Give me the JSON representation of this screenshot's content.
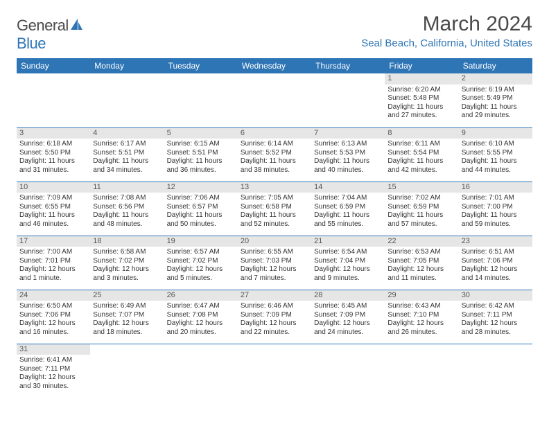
{
  "brand": {
    "name_part1": "General",
    "name_part2": "Blue",
    "sail_color": "#2e75b6"
  },
  "title": "March 2024",
  "location": "Seal Beach, California, United States",
  "colors": {
    "header_bg": "#2e75b6",
    "header_text": "#ffffff",
    "daynum_bg": "#e6e6e6",
    "row_border": "#2e75b6",
    "body_text": "#333333"
  },
  "weekdays": [
    "Sunday",
    "Monday",
    "Tuesday",
    "Wednesday",
    "Thursday",
    "Friday",
    "Saturday"
  ],
  "weeks": [
    [
      {
        "n": "",
        "sr": "",
        "ss": "",
        "dl": ""
      },
      {
        "n": "",
        "sr": "",
        "ss": "",
        "dl": ""
      },
      {
        "n": "",
        "sr": "",
        "ss": "",
        "dl": ""
      },
      {
        "n": "",
        "sr": "",
        "ss": "",
        "dl": ""
      },
      {
        "n": "",
        "sr": "",
        "ss": "",
        "dl": ""
      },
      {
        "n": "1",
        "sr": "Sunrise: 6:20 AM",
        "ss": "Sunset: 5:48 PM",
        "dl": "Daylight: 11 hours and 27 minutes."
      },
      {
        "n": "2",
        "sr": "Sunrise: 6:19 AM",
        "ss": "Sunset: 5:49 PM",
        "dl": "Daylight: 11 hours and 29 minutes."
      }
    ],
    [
      {
        "n": "3",
        "sr": "Sunrise: 6:18 AM",
        "ss": "Sunset: 5:50 PM",
        "dl": "Daylight: 11 hours and 31 minutes."
      },
      {
        "n": "4",
        "sr": "Sunrise: 6:17 AM",
        "ss": "Sunset: 5:51 PM",
        "dl": "Daylight: 11 hours and 34 minutes."
      },
      {
        "n": "5",
        "sr": "Sunrise: 6:15 AM",
        "ss": "Sunset: 5:51 PM",
        "dl": "Daylight: 11 hours and 36 minutes."
      },
      {
        "n": "6",
        "sr": "Sunrise: 6:14 AM",
        "ss": "Sunset: 5:52 PM",
        "dl": "Daylight: 11 hours and 38 minutes."
      },
      {
        "n": "7",
        "sr": "Sunrise: 6:13 AM",
        "ss": "Sunset: 5:53 PM",
        "dl": "Daylight: 11 hours and 40 minutes."
      },
      {
        "n": "8",
        "sr": "Sunrise: 6:11 AM",
        "ss": "Sunset: 5:54 PM",
        "dl": "Daylight: 11 hours and 42 minutes."
      },
      {
        "n": "9",
        "sr": "Sunrise: 6:10 AM",
        "ss": "Sunset: 5:55 PM",
        "dl": "Daylight: 11 hours and 44 minutes."
      }
    ],
    [
      {
        "n": "10",
        "sr": "Sunrise: 7:09 AM",
        "ss": "Sunset: 6:55 PM",
        "dl": "Daylight: 11 hours and 46 minutes."
      },
      {
        "n": "11",
        "sr": "Sunrise: 7:08 AM",
        "ss": "Sunset: 6:56 PM",
        "dl": "Daylight: 11 hours and 48 minutes."
      },
      {
        "n": "12",
        "sr": "Sunrise: 7:06 AM",
        "ss": "Sunset: 6:57 PM",
        "dl": "Daylight: 11 hours and 50 minutes."
      },
      {
        "n": "13",
        "sr": "Sunrise: 7:05 AM",
        "ss": "Sunset: 6:58 PM",
        "dl": "Daylight: 11 hours and 52 minutes."
      },
      {
        "n": "14",
        "sr": "Sunrise: 7:04 AM",
        "ss": "Sunset: 6:59 PM",
        "dl": "Daylight: 11 hours and 55 minutes."
      },
      {
        "n": "15",
        "sr": "Sunrise: 7:02 AM",
        "ss": "Sunset: 6:59 PM",
        "dl": "Daylight: 11 hours and 57 minutes."
      },
      {
        "n": "16",
        "sr": "Sunrise: 7:01 AM",
        "ss": "Sunset: 7:00 PM",
        "dl": "Daylight: 11 hours and 59 minutes."
      }
    ],
    [
      {
        "n": "17",
        "sr": "Sunrise: 7:00 AM",
        "ss": "Sunset: 7:01 PM",
        "dl": "Daylight: 12 hours and 1 minute."
      },
      {
        "n": "18",
        "sr": "Sunrise: 6:58 AM",
        "ss": "Sunset: 7:02 PM",
        "dl": "Daylight: 12 hours and 3 minutes."
      },
      {
        "n": "19",
        "sr": "Sunrise: 6:57 AM",
        "ss": "Sunset: 7:02 PM",
        "dl": "Daylight: 12 hours and 5 minutes."
      },
      {
        "n": "20",
        "sr": "Sunrise: 6:55 AM",
        "ss": "Sunset: 7:03 PM",
        "dl": "Daylight: 12 hours and 7 minutes."
      },
      {
        "n": "21",
        "sr": "Sunrise: 6:54 AM",
        "ss": "Sunset: 7:04 PM",
        "dl": "Daylight: 12 hours and 9 minutes."
      },
      {
        "n": "22",
        "sr": "Sunrise: 6:53 AM",
        "ss": "Sunset: 7:05 PM",
        "dl": "Daylight: 12 hours and 11 minutes."
      },
      {
        "n": "23",
        "sr": "Sunrise: 6:51 AM",
        "ss": "Sunset: 7:06 PM",
        "dl": "Daylight: 12 hours and 14 minutes."
      }
    ],
    [
      {
        "n": "24",
        "sr": "Sunrise: 6:50 AM",
        "ss": "Sunset: 7:06 PM",
        "dl": "Daylight: 12 hours and 16 minutes."
      },
      {
        "n": "25",
        "sr": "Sunrise: 6:49 AM",
        "ss": "Sunset: 7:07 PM",
        "dl": "Daylight: 12 hours and 18 minutes."
      },
      {
        "n": "26",
        "sr": "Sunrise: 6:47 AM",
        "ss": "Sunset: 7:08 PM",
        "dl": "Daylight: 12 hours and 20 minutes."
      },
      {
        "n": "27",
        "sr": "Sunrise: 6:46 AM",
        "ss": "Sunset: 7:09 PM",
        "dl": "Daylight: 12 hours and 22 minutes."
      },
      {
        "n": "28",
        "sr": "Sunrise: 6:45 AM",
        "ss": "Sunset: 7:09 PM",
        "dl": "Daylight: 12 hours and 24 minutes."
      },
      {
        "n": "29",
        "sr": "Sunrise: 6:43 AM",
        "ss": "Sunset: 7:10 PM",
        "dl": "Daylight: 12 hours and 26 minutes."
      },
      {
        "n": "30",
        "sr": "Sunrise: 6:42 AM",
        "ss": "Sunset: 7:11 PM",
        "dl": "Daylight: 12 hours and 28 minutes."
      }
    ],
    [
      {
        "n": "31",
        "sr": "Sunrise: 6:41 AM",
        "ss": "Sunset: 7:11 PM",
        "dl": "Daylight: 12 hours and 30 minutes."
      },
      {
        "n": "",
        "sr": "",
        "ss": "",
        "dl": ""
      },
      {
        "n": "",
        "sr": "",
        "ss": "",
        "dl": ""
      },
      {
        "n": "",
        "sr": "",
        "ss": "",
        "dl": ""
      },
      {
        "n": "",
        "sr": "",
        "ss": "",
        "dl": ""
      },
      {
        "n": "",
        "sr": "",
        "ss": "",
        "dl": ""
      },
      {
        "n": "",
        "sr": "",
        "ss": "",
        "dl": ""
      }
    ]
  ]
}
